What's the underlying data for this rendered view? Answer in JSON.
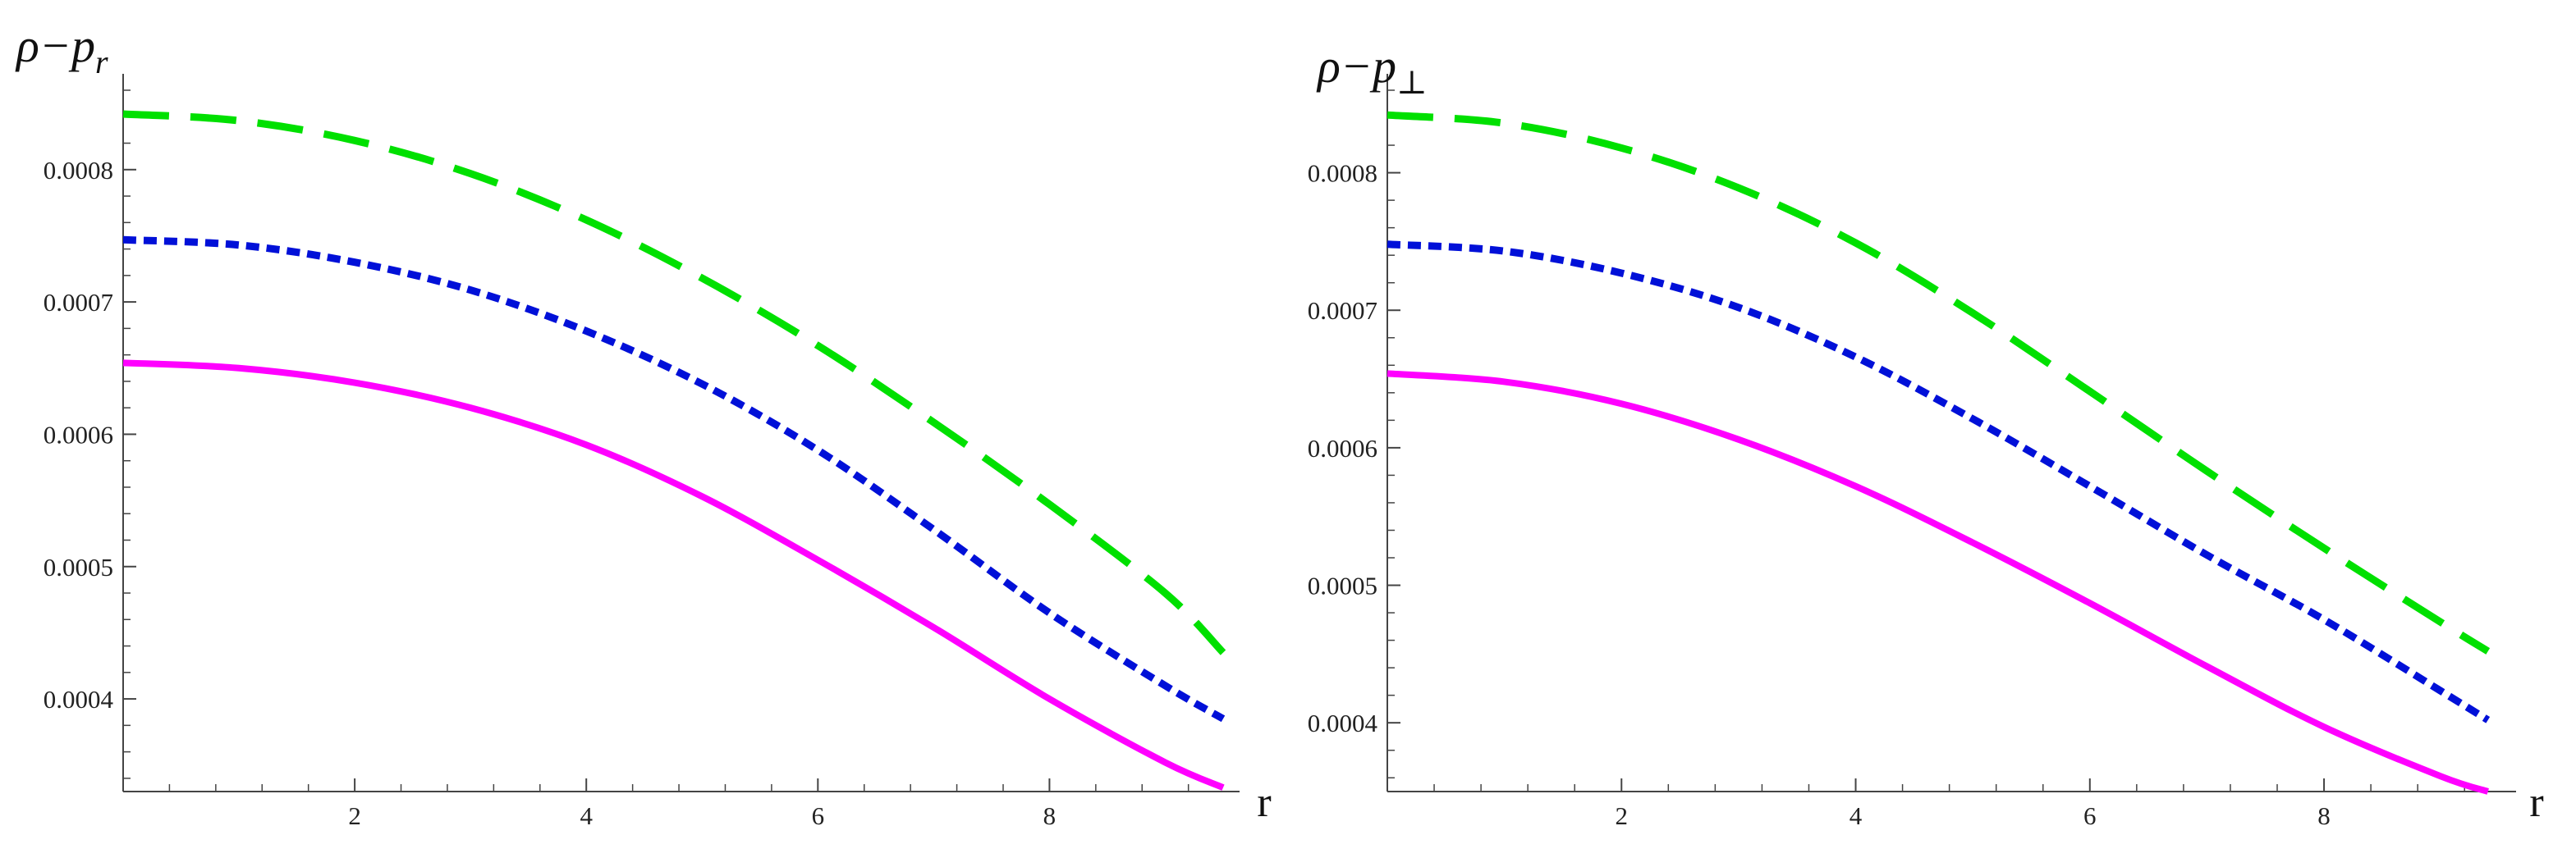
{
  "chart_data": [
    {
      "type": "line",
      "ylabel": "ρ−p",
      "ylabel_sub": "r",
      "xlabel": "r",
      "xlim": [
        0,
        9.5
      ],
      "ylim": [
        0.00033,
        0.00086
      ],
      "xticks": [
        2,
        4,
        6,
        8
      ],
      "yticks": [
        0.0004,
        0.0005,
        0.0006,
        0.0007,
        0.0008
      ],
      "ytick_labels": [
        "0.0004",
        "0.0005",
        "0.0006",
        "0.0007",
        "0.0008"
      ],
      "grid": false,
      "series": [
        {
          "color": "#00e000",
          "dash": "long-dash",
          "x": [
            0,
            1,
            2,
            3,
            4,
            5,
            6,
            7,
            8,
            9,
            9.5
          ],
          "y": [
            0.000842,
            0.000837,
            0.000822,
            0.000797,
            0.000762,
            0.000718,
            0.000667,
            0.000609,
            0.000547,
            0.00048,
            0.000435
          ]
        },
        {
          "color": "#0010d8",
          "dash": "short-dash",
          "x": [
            0,
            1,
            2,
            3,
            4,
            5,
            6,
            7,
            8,
            9,
            9.5
          ],
          "y": [
            0.000747,
            0.000743,
            0.00073,
            0.000709,
            0.000678,
            0.000638,
            0.000588,
            0.000528,
            0.000465,
            0.00041,
            0.000385
          ]
        },
        {
          "color": "#ff00ff",
          "dash": "solid",
          "x": [
            0,
            1,
            2,
            3,
            4,
            5,
            6,
            7,
            8,
            9,
            9.5
          ],
          "y": [
            0.000654,
            0.00065,
            0.000639,
            0.00062,
            0.000592,
            0.000553,
            0.000505,
            0.000454,
            0.0004,
            0.000352,
            0.000333
          ]
        }
      ]
    },
    {
      "type": "line",
      "ylabel": "ρ−p",
      "ylabel_sub": "⊥",
      "xlabel": "r",
      "xlim": [
        0,
        9.5
      ],
      "ylim": [
        0.00035,
        0.00086
      ],
      "xticks": [
        2,
        4,
        6,
        8
      ],
      "yticks": [
        0.0004,
        0.0005,
        0.0006,
        0.0007,
        0.0008
      ],
      "ytick_labels": [
        "0.0004",
        "0.0005",
        "0.0006",
        "0.0007",
        "0.0008"
      ],
      "grid": false,
      "series": [
        {
          "color": "#00e000",
          "dash": "long-dash",
          "x": [
            0,
            1,
            2,
            3,
            4,
            5,
            6,
            7,
            8,
            9,
            9.4
          ],
          "y": [
            0.000842,
            0.000836,
            0.000818,
            0.000789,
            0.000749,
            0.000698,
            0.000641,
            0.000583,
            0.000527,
            0.000473,
            0.000452
          ]
        },
        {
          "color": "#0010d8",
          "dash": "short-dash",
          "x": [
            0,
            1,
            2,
            3,
            4,
            5,
            6,
            7,
            8,
            9,
            9.4
          ],
          "y": [
            0.000748,
            0.000743,
            0.000727,
            0.000702,
            0.000666,
            0.000621,
            0.000572,
            0.000522,
            0.000475,
            0.000423,
            0.000402
          ]
        },
        {
          "color": "#ff00ff",
          "dash": "solid",
          "x": [
            0,
            1,
            2,
            3,
            4,
            5,
            6,
            7,
            8,
            9,
            9.4
          ],
          "y": [
            0.000654,
            0.000648,
            0.000632,
            0.000606,
            0.000572,
            0.000531,
            0.000487,
            0.000441,
            0.000397,
            0.000361,
            0.00035
          ]
        }
      ]
    }
  ]
}
